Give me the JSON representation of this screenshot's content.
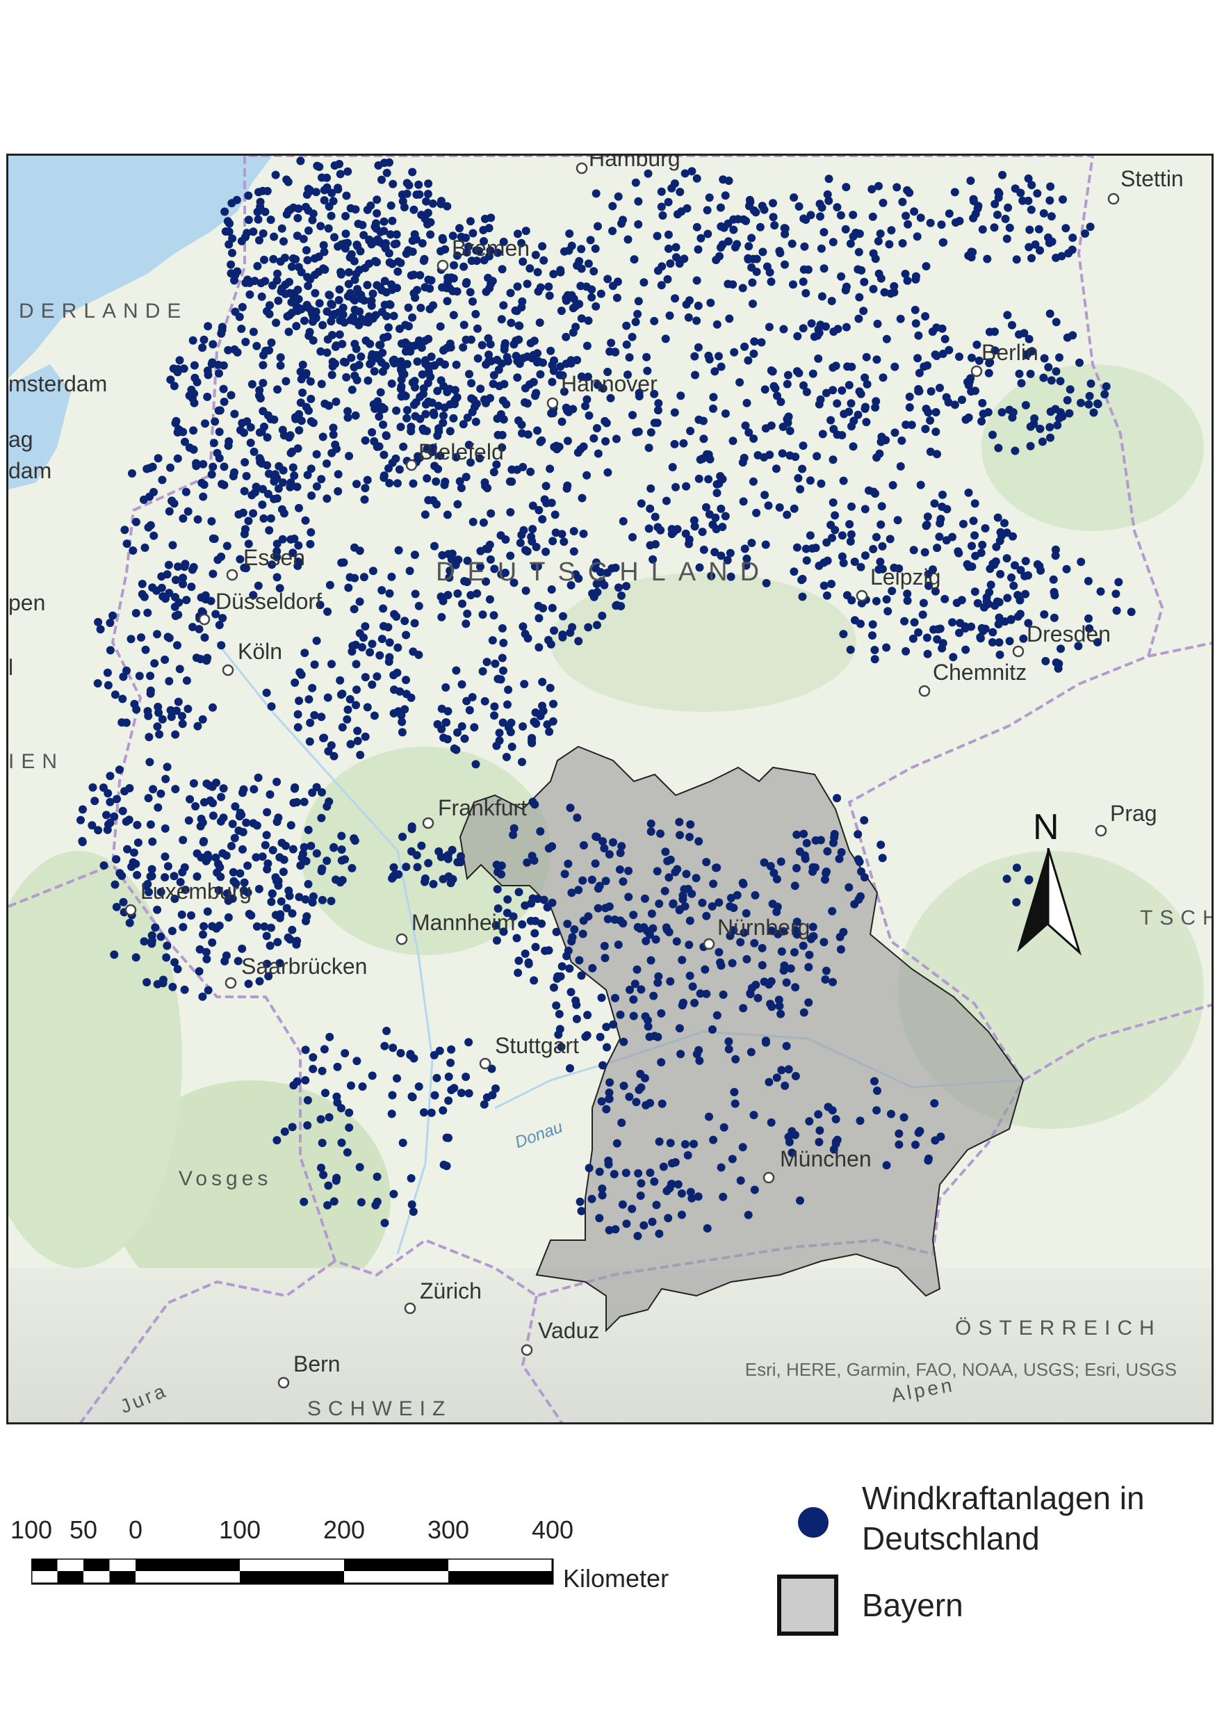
{
  "map": {
    "attribution": "Esri, HERE, Garmin, FAO, NOAA, USGS; Esri, USGS",
    "region_label": "DEUTSCHLAND",
    "cities": [
      {
        "id": "hamburg",
        "name": "Hamburg"
      },
      {
        "id": "stettin",
        "name": "Stettin"
      },
      {
        "id": "bremen",
        "name": "Bremen"
      },
      {
        "id": "amsterdam",
        "name": "msterdam"
      },
      {
        "id": "hannover",
        "name": "Hannover"
      },
      {
        "id": "berlin",
        "name": "Berlin"
      },
      {
        "id": "bielefeld",
        "name": "Bielefeld"
      },
      {
        "id": "essen",
        "name": "Essen"
      },
      {
        "id": "duesseldorf",
        "name": "Düsseldorf"
      },
      {
        "id": "koeln",
        "name": "Köln"
      },
      {
        "id": "leipzig",
        "name": "Leipzig"
      },
      {
        "id": "dresden",
        "name": "Dresden"
      },
      {
        "id": "chemnitz",
        "name": "Chemnitz"
      },
      {
        "id": "frankfurt",
        "name": "Frankfurt"
      },
      {
        "id": "prag",
        "name": "Prag"
      },
      {
        "id": "luxemburg",
        "name": "Luxemburg"
      },
      {
        "id": "mannheim",
        "name": "Mannheim"
      },
      {
        "id": "nuernberg",
        "name": "Nürnberg"
      },
      {
        "id": "saarbruecken",
        "name": "Saarbrücken"
      },
      {
        "id": "stuttgart",
        "name": "Stuttgart"
      },
      {
        "id": "muenchen",
        "name": "München"
      },
      {
        "id": "zuerich",
        "name": "Zürich"
      },
      {
        "id": "vaduz",
        "name": "Vaduz"
      },
      {
        "id": "bern",
        "name": "Bern"
      }
    ],
    "partial_labels": [
      {
        "id": "ag",
        "text": "ag"
      },
      {
        "id": "dam",
        "text": "dam"
      },
      {
        "id": "pen",
        "text": "pen"
      },
      {
        "id": "l",
        "text": "l"
      }
    ],
    "countries": [
      {
        "id": "niederlande",
        "text": "DERLANDE"
      },
      {
        "id": "belgien",
        "text": "IEN"
      },
      {
        "id": "tschechien",
        "text": "TSCH"
      },
      {
        "id": "oesterreich",
        "text": "ÖSTERREICH"
      },
      {
        "id": "schweiz",
        "text": "SCHWEIZ"
      }
    ],
    "features": [
      {
        "id": "vosges",
        "text": "Vosges"
      },
      {
        "id": "donau",
        "text": "Donau"
      },
      {
        "id": "jura",
        "text": "Jura"
      },
      {
        "id": "alpen",
        "text": "Alpen"
      }
    ],
    "colors": {
      "turbine": "#0a2472",
      "bayern_fill": "#9e9e9e",
      "border": "#b39ad0",
      "water": "#b5d7ee",
      "land": "#eef2e6"
    }
  },
  "north_arrow": {
    "label": "N"
  },
  "scalebar": {
    "ticks": [
      "100",
      "50",
      "0",
      "100",
      "200",
      "300",
      "400"
    ],
    "unit": "Kilometer"
  },
  "legend": {
    "items": [
      {
        "symbol": "dot",
        "label_line1": "Windkraftanlagen in",
        "label_line2": "Deutschland",
        "color": "#0a2472"
      },
      {
        "symbol": "box",
        "label": "Bayern",
        "color": "#cccccc"
      }
    ]
  }
}
